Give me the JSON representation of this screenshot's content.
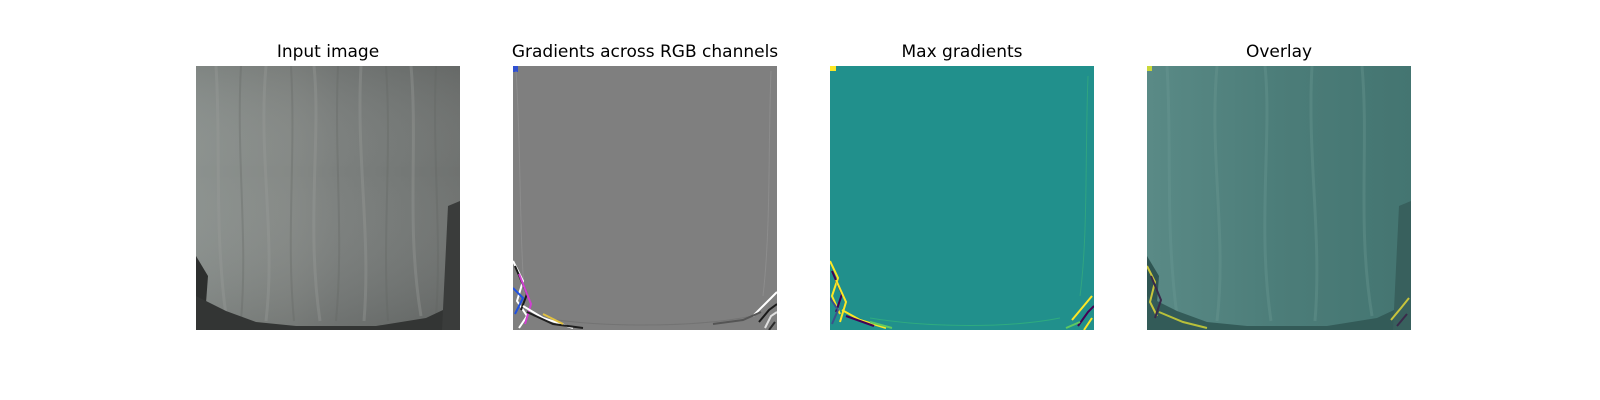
{
  "panels": [
    {
      "title": "Input image"
    },
    {
      "title": "Gradients across RGB channels"
    },
    {
      "title": "Max gradients"
    },
    {
      "title": "Overlay"
    }
  ],
  "colors": {
    "background": "#ffffff",
    "cloth_gray": "#7c807e",
    "gradient_gray": "#7f7f7f",
    "viridis_teal": "#21908c",
    "viridis_yellow": "#fde725",
    "viridis_purple": "#440154",
    "overlay_teal": "#4f7f7b"
  }
}
